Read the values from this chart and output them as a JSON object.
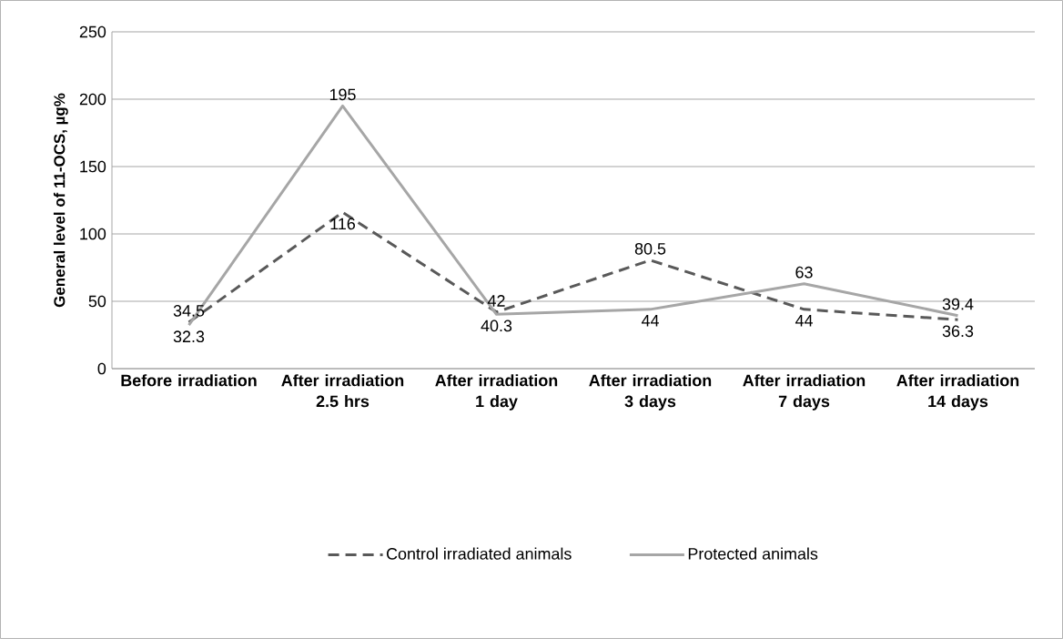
{
  "chart_data": {
    "type": "line",
    "ylabel": "General level of 11-OCS, µg%",
    "categories": [
      "Before irradiation",
      "After irradiation 2.5 hrs",
      "After irradiation 1 day",
      "After irradiation 3 days",
      "After irradiation 7 days",
      "After irradiation 14 days"
    ],
    "series": [
      {
        "name": "Control irradiated animals",
        "color": "#595959",
        "line_style": "dashed",
        "values": [
          34.5,
          116,
          42,
          80.5,
          44,
          36.3
        ]
      },
      {
        "name": "Protected animals",
        "color": "#a6a6a6",
        "line_style": "solid",
        "values": [
          32.3,
          195,
          40.3,
          44,
          63,
          39.4
        ]
      }
    ],
    "ylim": [
      0,
      250
    ],
    "yticks": [
      0,
      50,
      100,
      150,
      200,
      250
    ],
    "grid": "y",
    "legend": "bottom",
    "data_labels": true,
    "marker": "none"
  }
}
